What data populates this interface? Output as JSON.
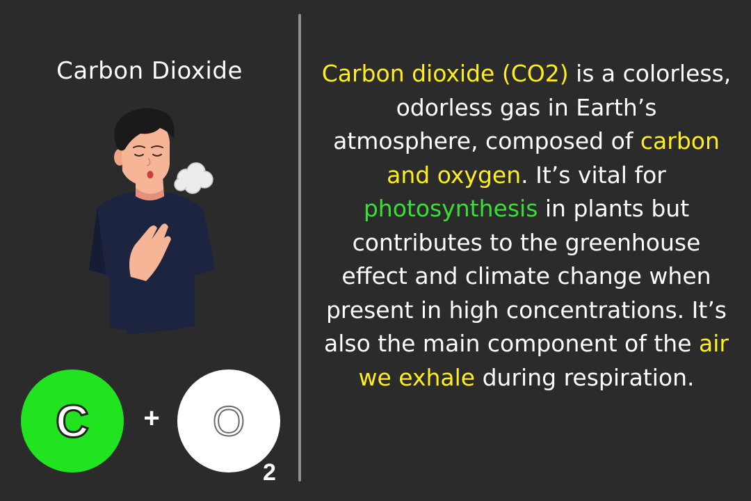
{
  "left_panel": {
    "title": "Carbon Dioxide",
    "formula": {
      "element_1": "C",
      "operator": "+",
      "element_2": "O",
      "subscript": "2"
    },
    "illustration": {
      "subject": "person exhaling breath",
      "icon": "exhale-person-icon"
    }
  },
  "description": {
    "segments": [
      {
        "text": "Carbon dioxide (CO2)",
        "style": "yellow"
      },
      {
        "text": " is a colorless, odorless gas in Earth’s atmosphere, composed of ",
        "style": "plain"
      },
      {
        "text": "carbon and oxygen",
        "style": "yellow"
      },
      {
        "text": ". It’s vital for ",
        "style": "plain"
      },
      {
        "text": "photosynthesis",
        "style": "green"
      },
      {
        "text": " in plants but contributes to the greenhouse effect and climate change when present in high concentrations. It’s also the main component of the ",
        "style": "plain"
      },
      {
        "text": "air we exhale",
        "style": "yellow"
      },
      {
        "text": " during respiration.",
        "style": "plain"
      }
    ]
  },
  "colors": {
    "background": "#2b2b2b",
    "divider": "#8f8f8f",
    "highlight_yellow": "#ffef18",
    "highlight_green": "#37e035",
    "carbon_circle": "#22e31f",
    "oxygen_circle": "#ffffff",
    "text": "#ffffff"
  }
}
